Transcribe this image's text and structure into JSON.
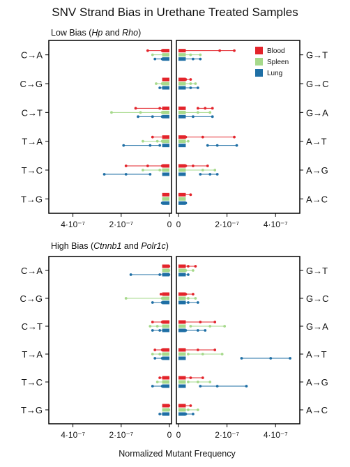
{
  "title": "SNV Strand Bias in Urethane Treated Samples",
  "xlabel": "Normalized Mutant Frequency",
  "colors": {
    "Blood": "#e3242b",
    "Spleen": "#a6d98b",
    "Lung": "#1f6fa5"
  },
  "legend": {
    "placement": "top-right",
    "entries": [
      "Blood",
      "Spleen",
      "Lung"
    ]
  },
  "chart_data": {
    "type": "scatter",
    "xlim": [
      0,
      5e-07
    ],
    "x_ticks": [
      {
        "value": 4e-07,
        "label": "4·10⁻⁷"
      },
      {
        "value": 2e-07,
        "label": "2·10⁻⁷"
      },
      {
        "value": 0,
        "label": "0"
      }
    ],
    "rows_left": [
      "C→A",
      "C→G",
      "C→T",
      "T→A",
      "T→C",
      "T→G"
    ],
    "rows_right": [
      "G→T",
      "G→C",
      "G→A",
      "A→T",
      "A→G",
      "A→C"
    ],
    "series": [
      "Blood",
      "Spleen",
      "Lung"
    ],
    "panels": [
      {
        "title_parts": [
          {
            "text": "Low Bias (",
            "italic": false
          },
          {
            "text": "Hp",
            "italic": true
          },
          {
            "text": " and ",
            "italic": false
          },
          {
            "text": "Rho",
            "italic": true
          },
          {
            "text": ")",
            "italic": false
          }
        ],
        "rows": [
          {
            "left": {
              "Blood": [
                1e-08,
                3e-08,
                9e-08
              ],
              "Spleen": [
                1e-08,
                2e-08,
                7e-08
              ],
              "Lung": [
                1e-08,
                3e-08,
                6e-08
              ]
            },
            "right": {
              "Blood": [
                1e-08,
                1.7e-07,
                2.3e-07
              ],
              "Spleen": [
                2e-08,
                5e-08,
                9e-08
              ],
              "Lung": [
                1e-08,
                6e-08,
                9e-08
              ]
            }
          },
          {
            "left": {
              "Blood": [
                8e-09,
                1.5e-08,
                2e-08
              ],
              "Spleen": [
                1.5e-08,
                3e-08,
                5.5e-08
              ],
              "Lung": [
                1e-08,
                2.5e-08,
                4e-08
              ]
            },
            "right": {
              "Blood": [
                1e-08,
                3e-08,
                5e-08
              ],
              "Spleen": [
                2e-08,
                5e-08,
                7e-08
              ],
              "Lung": [
                2e-08,
                5e-08,
                8e-08
              ]
            }
          },
          {
            "left": {
              "Blood": [
                1e-08,
                4e-08,
                1.4e-07
              ],
              "Spleen": [
                3e-08,
                1.2e-07,
                2.4e-07
              ],
              "Lung": [
                3e-08,
                7e-08,
                1.3e-07
              ]
            },
            "right": {
              "Blood": [
                8e-08,
                1.1e-07,
                1.4e-07
              ],
              "Spleen": [
                2e-08,
                8e-08,
                1.3e-07
              ],
              "Lung": [
                2e-08,
                6e-08,
                1.4e-07
              ]
            }
          },
          {
            "left": {
              "Blood": [
                1e-08,
                2e-08,
                7e-08
              ],
              "Spleen": [
                3e-08,
                5e-08,
                1.1e-07
              ],
              "Lung": [
                4e-08,
                8e-08,
                1.9e-07
              ]
            },
            "right": {
              "Blood": [
                3e-08,
                1e-07,
                2.3e-07
              ],
              "Spleen": [
                1e-08,
                2e-08,
                4e-08
              ],
              "Lung": [
                1.2e-07,
                1.6e-07,
                2.4e-07
              ]
            }
          },
          {
            "left": {
              "Blood": [
                3e-08,
                9e-08,
                1.8e-07
              ],
              "Spleen": [
                1e-08,
                4e-08,
                1.1e-07
              ],
              "Lung": [
                8e-08,
                1.8e-07,
                2.7e-07
              ]
            },
            "right": {
              "Blood": [
                3e-08,
                6e-08,
                1.2e-07
              ],
              "Spleen": [
                1e-08,
                1e-07,
                1.5e-07
              ],
              "Lung": [
                9e-08,
                1.3e-07,
                1.6e-07
              ]
            }
          },
          {
            "left": {
              "Blood": [
                5e-09,
                1e-08,
                2e-08
              ],
              "Spleen": [
                1e-08,
                1.5e-08,
                2.5e-08
              ],
              "Lung": [
                5e-09,
                2e-08,
                3e-08
              ]
            },
            "right": {
              "Blood": [
                5e-09,
                2e-08,
                5e-08
              ],
              "Spleen": [
                5e-09,
                1e-08,
                2e-08
              ],
              "Lung": [
                1e-08,
                2e-08,
                3e-08
              ]
            }
          }
        ]
      },
      {
        "title_parts": [
          {
            "text": "High Bias (",
            "italic": false
          },
          {
            "text": "Ctnnb1",
            "italic": true
          },
          {
            "text": " and ",
            "italic": false
          },
          {
            "text": "Polr1c",
            "italic": true
          },
          {
            "text": ")",
            "italic": false
          }
        ],
        "rows": [
          {
            "left": {
              "Blood": [
                2e-09,
                5e-09,
                8e-09
              ],
              "Spleen": [
                2e-09,
                5e-09,
                1e-08
              ],
              "Lung": [
                2e-09,
                4e-08,
                1.6e-07
              ]
            },
            "right": {
              "Blood": [
                1e-08,
                4e-08,
                7e-08
              ],
              "Spleen": [
                1e-08,
                3e-08,
                6e-08
              ],
              "Lung": [
                1e-08,
                2e-08,
                4e-08
              ]
            }
          },
          {
            "left": {
              "Blood": [
                5e-09,
                2e-08,
                3.5e-08
              ],
              "Spleen": [
                1e-08,
                3e-08,
                1.8e-07
              ],
              "Lung": [
                5e-09,
                3e-08,
                7e-08
              ]
            },
            "right": {
              "Blood": [
                1e-08,
                3e-08,
                6e-08
              ],
              "Spleen": [
                1e-08,
                4e-08,
                7e-08
              ],
              "Lung": [
                1e-08,
                4e-08,
                8e-08
              ]
            }
          },
          {
            "left": {
              "Blood": [
                5e-09,
                3e-08,
                7e-08
              ],
              "Spleen": [
                1e-08,
                5e-08,
                8e-08
              ],
              "Lung": [
                1e-08,
                4e-08,
                7e-08
              ]
            },
            "right": {
              "Blood": [
                2e-08,
                9e-08,
                1.5e-07
              ],
              "Spleen": [
                5e-08,
                1.3e-07,
                1.9e-07
              ],
              "Lung": [
                3e-08,
                8e-08,
                1.1e-07
              ]
            }
          },
          {
            "left": {
              "Blood": [
                5e-09,
                3e-08,
                6e-08
              ],
              "Spleen": [
                1e-08,
                4e-08,
                7e-08
              ],
              "Lung": [
                1e-08,
                3e-08,
                6e-08
              ]
            },
            "right": {
              "Blood": [
                2e-08,
                8e-08,
                1.5e-07
              ],
              "Spleen": [
                4e-08,
                1e-07,
                1.8e-07
              ],
              "Lung": [
                2.6e-07,
                3.8e-07,
                4.6e-07
              ]
            }
          },
          {
            "left": {
              "Blood": [
                5e-09,
                2e-08,
                4e-08
              ],
              "Spleen": [
                1e-08,
                2e-08,
                5e-08
              ],
              "Lung": [
                1e-08,
                3e-08,
                7e-08
              ]
            },
            "right": {
              "Blood": [
                2e-08,
                5e-08,
                1e-07
              ],
              "Spleen": [
                4e-08,
                8e-08,
                1.3e-07
              ],
              "Lung": [
                9e-08,
                1.6e-07,
                2.8e-07
              ]
            }
          },
          {
            "left": {
              "Blood": [
                2e-09,
                5e-09,
                8e-09
              ],
              "Spleen": [
                2e-09,
                5e-09,
                1e-08
              ],
              "Lung": [
                5e-09,
                2e-08,
                4e-08
              ]
            },
            "right": {
              "Blood": [
                5e-09,
                2e-08,
                5e-08
              ],
              "Spleen": [
                1e-08,
                4e-08,
                8e-08
              ],
              "Lung": [
                1e-08,
                3e-08,
                6e-08
              ]
            }
          }
        ]
      }
    ]
  }
}
